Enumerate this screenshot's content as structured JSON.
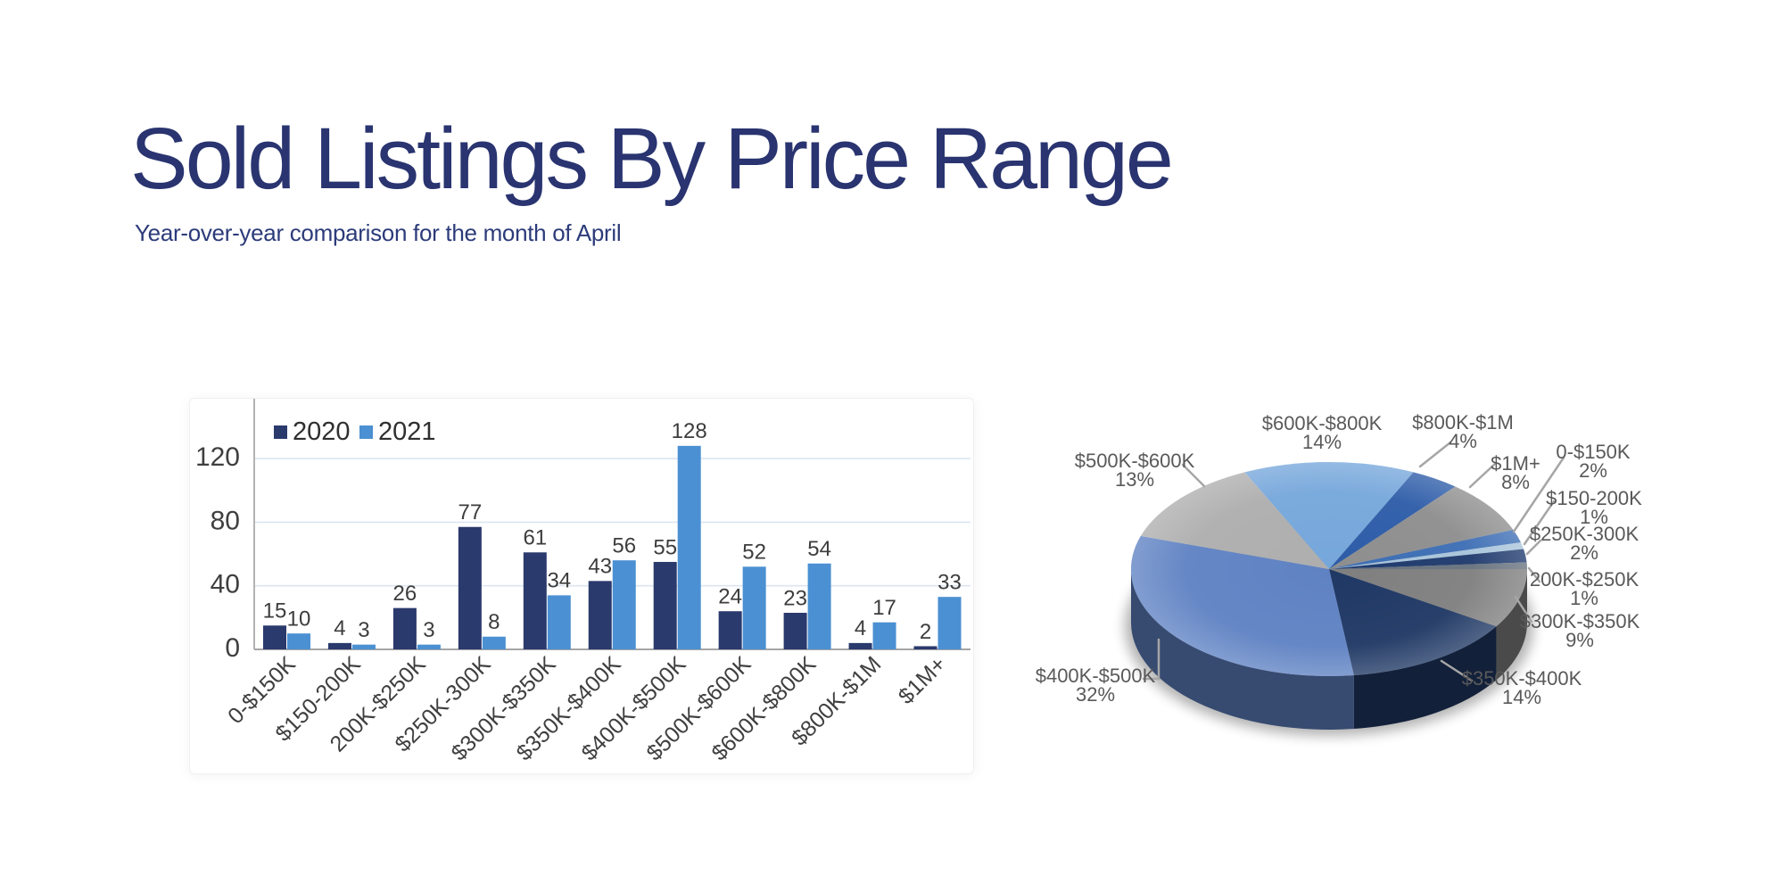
{
  "slide": {
    "title": "Sold Listings By Price Range",
    "subtitle": "Year-over-year comparison for the month of April"
  },
  "colors": {
    "title_text": "#293470",
    "axis_text": "#3f3f3f",
    "bar_value_text": "#3d3d3d",
    "legend_text": "#2f2f2f",
    "pie_label_text": "#595959",
    "leader_line": "#a6a6a6",
    "gridline": "#dce6f2",
    "axis_line": "#a6a6a6",
    "series_2020": "#2b3a6d",
    "series_2021": "#4b90d2"
  },
  "chart_data": [
    {
      "type": "bar",
      "title": "",
      "categories": [
        "0-$150K",
        "$150-200K",
        "200K-$250K",
        "$250K-300K",
        "$300K-$350K",
        "$350K-$400K",
        "$400K-$500K",
        "$500K-$600K",
        "$600K-$800K",
        "$800K-$1M",
        "$1M+"
      ],
      "series": [
        {
          "name": "2020",
          "color": "#2b3a6d",
          "values": [
            15,
            4,
            26,
            77,
            61,
            43,
            55,
            24,
            23,
            4,
            2
          ]
        },
        {
          "name": "2021",
          "color": "#4b90d2",
          "values": [
            10,
            3,
            3,
            8,
            34,
            56,
            128,
            52,
            54,
            17,
            33
          ]
        }
      ],
      "xlabel": "",
      "ylabel": "",
      "yticks": [
        0,
        40,
        80,
        120
      ],
      "ylim": [
        0,
        150
      ],
      "grid": true,
      "bar_value_labels": true,
      "legend_position": "top-left"
    },
    {
      "type": "pie",
      "style": "3d",
      "start_angle_deg_clockwise_from_12": 68.4,
      "slices_clockwise": [
        {
          "label": "0-$150K",
          "pct": 2,
          "color": "#3d6eb4"
        },
        {
          "label": "$150-200K",
          "pct": 1,
          "color": "#a8c4da"
        },
        {
          "label": "$250K-300K",
          "pct": 2,
          "color": "#1f3a6d"
        },
        {
          "label": "200K-$250K",
          "pct": 1,
          "color": "#67727e"
        },
        {
          "label": "$300K-$350K",
          "pct": 9,
          "color": "#7f7f7f"
        },
        {
          "label": "$350K-$400K",
          "pct": 14,
          "color": "#1f3864"
        },
        {
          "label": "$400K-$500K",
          "pct": 32,
          "color": "#5f82c3"
        },
        {
          "label": "$500K-$600K",
          "pct": 13,
          "color": "#aeaeae"
        },
        {
          "label": "$600K-$800K",
          "pct": 14,
          "color": "#76a7db"
        },
        {
          "label": "$800K-$1M",
          "pct": 4,
          "color": "#2d5ca8"
        },
        {
          "label": "$1M+",
          "pct": 8,
          "color": "#8e8e8e"
        }
      ]
    }
  ]
}
